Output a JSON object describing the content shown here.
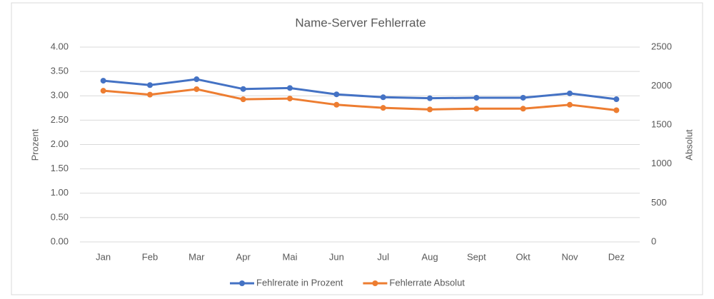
{
  "chart_data": {
    "type": "line",
    "title": "Name-Server Fehlerrate",
    "y_label": "Prozent",
    "y2_label": "Absolut",
    "categories": [
      "Jan",
      "Feb",
      "Mar",
      "Apr",
      "Mai",
      "Jun",
      "Jul",
      "Aug",
      "Sept",
      "Okt",
      "Nov",
      "Dez"
    ],
    "series": [
      {
        "name": "Fehlrerate in Prozent",
        "color": "#4472c4",
        "values": [
          3.31,
          3.22,
          3.34,
          3.14,
          3.16,
          3.03,
          2.97,
          2.95,
          2.96,
          2.96,
          3.05,
          2.93
        ]
      },
      {
        "name": "Fehlerrate Absolut",
        "color": "#ed7d31",
        "axis": "y2",
        "values": [
          1940,
          1890,
          1960,
          1830,
          1840,
          1760,
          1720,
          1700,
          1710,
          1710,
          1760,
          1690
        ]
      }
    ],
    "ylim": [
      0,
      4
    ],
    "yticks": [
      {
        "value": 0,
        "label": "0.00"
      },
      {
        "value": 0.5,
        "label": "0.50"
      },
      {
        "value": 1,
        "label": "1.00"
      },
      {
        "value": 1.5,
        "label": "1.50"
      },
      {
        "value": 2,
        "label": "2.00"
      },
      {
        "value": 2.5,
        "label": "2.50"
      },
      {
        "value": 3,
        "label": "3.00"
      },
      {
        "value": 3.5,
        "label": "3.50"
      },
      {
        "value": 4,
        "label": "4.00"
      }
    ],
    "y2lim": [
      0,
      2500
    ],
    "y2ticks": [
      0,
      500,
      1000,
      1500,
      2000,
      2500
    ],
    "grid": true,
    "legend": "bottom"
  }
}
